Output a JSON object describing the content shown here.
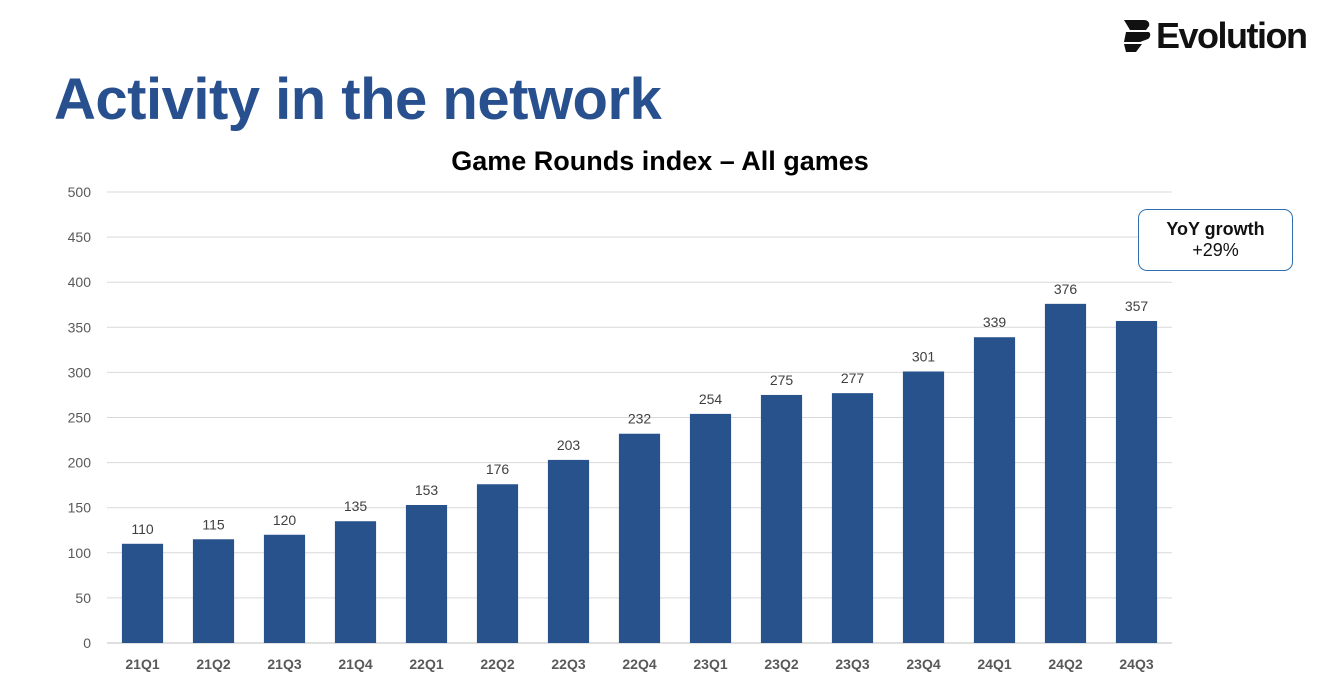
{
  "page": {
    "title": "Activity in the network",
    "logo_text": "Evolution",
    "logo_icon": "evolution-mark-icon"
  },
  "callout": {
    "label": "YoY growth",
    "value": "+29%"
  },
  "chart_data": {
    "type": "bar",
    "title": "Game Rounds index – All games",
    "xlabel": "",
    "ylabel": "",
    "categories": [
      "21Q1",
      "21Q2",
      "21Q3",
      "21Q4",
      "22Q1",
      "22Q2",
      "22Q3",
      "22Q4",
      "23Q1",
      "23Q2",
      "23Q3",
      "23Q4",
      "24Q1",
      "24Q2",
      "24Q3"
    ],
    "values": [
      110,
      115,
      120,
      135,
      153,
      176,
      203,
      232,
      254,
      275,
      277,
      301,
      339,
      376,
      357
    ],
    "ylim": [
      0,
      500
    ],
    "yticks": [
      0,
      50,
      100,
      150,
      200,
      250,
      300,
      350,
      400,
      450,
      500
    ],
    "grid": true,
    "data_labels": true,
    "legend": "none",
    "colors": {
      "bar": "#28528c",
      "grid": "#d9d9d9",
      "tick_text": "#595959",
      "label_text": "#404040"
    }
  }
}
